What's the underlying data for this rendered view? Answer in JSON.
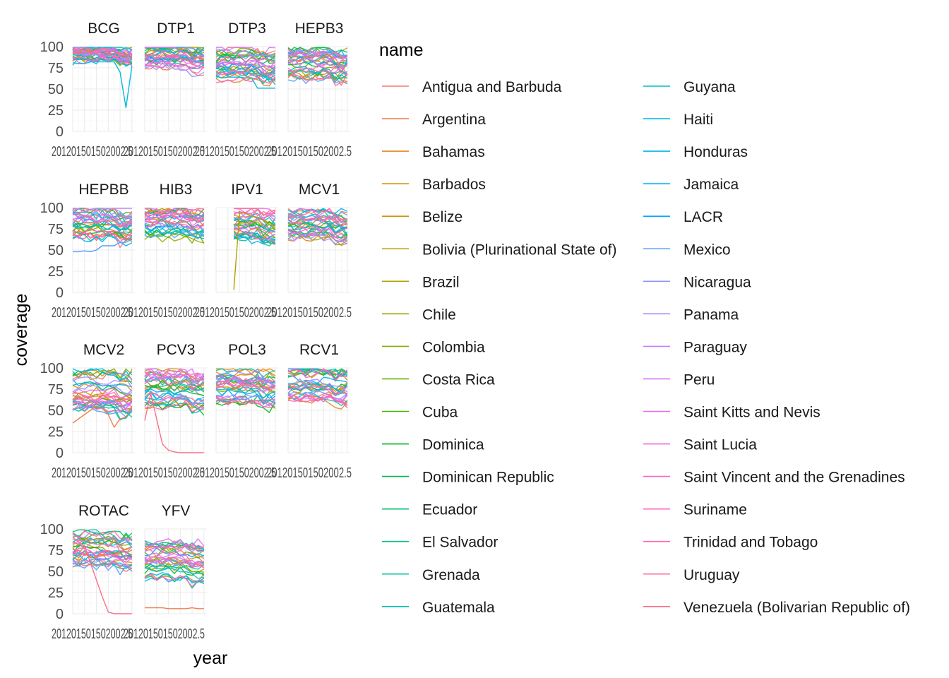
{
  "chart_data": {
    "type": "line",
    "xlabel": "year",
    "ylabel": "coverage",
    "legend_title": "name",
    "legend_position": "right",
    "grid": true,
    "ylim": [
      0,
      100
    ],
    "y_ticks": [
      0,
      25,
      50,
      75,
      100
    ],
    "x_tick_labels_overlapping": "2012.5, 2015.0, 2017.5, 2020.0, 2022.5",
    "x_ticks": [
      2012.5,
      2015,
      2017.5,
      2020,
      2022.5
    ],
    "xlim": [
      2012,
      2022.5
    ],
    "years": [
      2012,
      2013,
      2014,
      2015,
      2016,
      2017,
      2018,
      2019,
      2020,
      2021,
      2022
    ],
    "panels": [
      "BCG",
      "DTP1",
      "DTP3",
      "HEPB3",
      "HEPBB",
      "HIB3",
      "IPV1",
      "MCV1",
      "MCV2",
      "PCV3",
      "POL3",
      "RCV1",
      "ROTAC",
      "YFV"
    ],
    "series_names": [
      "Antigua and Barbuda",
      "Argentina",
      "Bahamas",
      "Barbados",
      "Belize",
      "Bolivia (Plurinational State of)",
      "Brazil",
      "Chile",
      "Colombia",
      "Costa Rica",
      "Cuba",
      "Dominica",
      "Dominican Republic",
      "Ecuador",
      "El Salvador",
      "Grenada",
      "Guatemala",
      "Guyana",
      "Haiti",
      "Honduras",
      "Jamaica",
      "LACR",
      "Mexico",
      "Nicaragua",
      "Panama",
      "Paraguay",
      "Peru",
      "Saint Kitts and Nevis",
      "Saint Lucia",
      "Saint Vincent and the Grenadines",
      "Suriname",
      "Trinidad and Tobago",
      "Uruguay",
      "Venezuela (Bolivarian Republic of)"
    ],
    "series_colors": [
      "#F8766D",
      "#F07F4F",
      "#E7851E",
      "#DB8E00",
      "#CF9400",
      "#C09B00",
      "#AFA100",
      "#9CA700",
      "#86AC00",
      "#6BB100",
      "#45B500",
      "#00B81F",
      "#00BB4E",
      "#00BE6C",
      "#00C086",
      "#00C19E",
      "#00C0B4",
      "#00BECA",
      "#00BBDB",
      "#00B6EB",
      "#00B0F6",
      "#00A8FF",
      "#529EFF",
      "#8C94FF",
      "#AE87FF",
      "#C77CFF",
      "#DA72FB",
      "#E96AF0",
      "#F564E3",
      "#FB61D3",
      "#FF61C2",
      "#FF64AF",
      "#FF699C",
      "#FA6F87"
    ],
    "highlight_series": [
      {
        "panel": "BCG",
        "name": "Haiti",
        "values": [
          81,
          80,
          80,
          82,
          82,
          82,
          82,
          82,
          70,
          28,
          77
        ]
      },
      {
        "panel": "DTP3",
        "name": "Haiti",
        "values": [
          65,
          63,
          64,
          64,
          64,
          63,
          63,
          51,
          51,
          51,
          51
        ]
      },
      {
        "panel": "HEPBB",
        "name": "Mexico",
        "values": [
          48,
          48,
          49,
          48,
          50,
          55,
          55,
          55,
          59,
          59,
          63
        ]
      },
      {
        "panel": "IPV1",
        "name": "Brazil",
        "values": [
          null,
          null,
          null,
          3,
          95,
          93,
          90,
          88,
          85,
          80,
          78
        ]
      },
      {
        "panel": "MCV2",
        "name": "Argentina",
        "values": [
          35,
          40,
          45,
          50,
          55,
          52,
          45,
          30,
          40,
          42,
          55
        ]
      },
      {
        "panel": "PCV3",
        "name": "Venezuela (Bolivarian Republic of)",
        "values": [
          38,
          70,
          40,
          10,
          3,
          1,
          0,
          0,
          0,
          0,
          0
        ]
      },
      {
        "panel": "ROTAC",
        "name": "Venezuela (Bolivarian Republic of)",
        "values": [
          90,
          85,
          80,
          60,
          40,
          20,
          2,
          0,
          0,
          0,
          0
        ]
      },
      {
        "panel": "YFV",
        "name": "Argentina",
        "values": [
          7,
          7,
          7,
          7,
          6,
          6,
          6,
          6,
          7,
          6,
          6
        ]
      }
    ]
  },
  "axis": {
    "x_title": "year",
    "y_title": "coverage",
    "y_tick_labels": [
      "100",
      "75",
      "50",
      "25",
      "0"
    ],
    "x_tick_label_compound": "201201501502002.5"
  },
  "legend": {
    "title": "name",
    "column1": [
      "Antigua and Barbuda",
      "Argentina",
      "Bahamas",
      "Barbados",
      "Belize",
      "Bolivia (Plurinational State of)",
      "Brazil",
      "Chile",
      "Colombia",
      "Costa Rica",
      "Cuba",
      "Dominica",
      "Dominican Republic",
      "Ecuador",
      "El Salvador",
      "Grenada",
      "Guatemala"
    ],
    "column2": [
      "Guyana",
      "Haiti",
      "Honduras",
      "Jamaica",
      "LACR",
      "Mexico",
      "Nicaragua",
      "Panama",
      "Paraguay",
      "Peru",
      "Saint Kitts and Nevis",
      "Saint Lucia",
      "Saint Vincent and the Grenadines",
      "Suriname",
      "Trinidad and Tobago",
      "Uruguay",
      "Venezuela (Bolivarian Republic of)"
    ]
  }
}
